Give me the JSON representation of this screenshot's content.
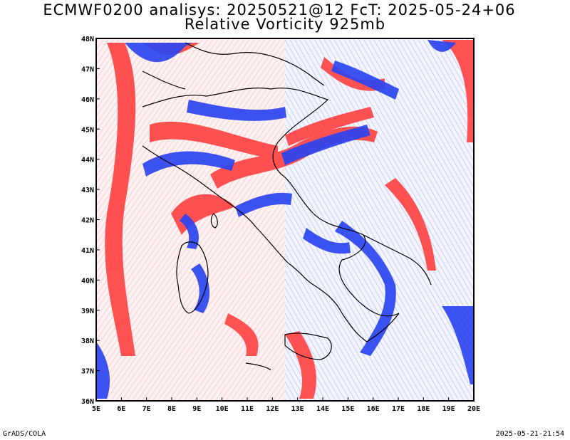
{
  "title_line1": "ECMWF0200 analisys: 20250521@12 FcT: 2025-05-24+06",
  "title_line2": "Relative Vorticity 925mb",
  "footer_left": "GrADS/COLA",
  "footer_right": "2025-05-21-21:54",
  "map": {
    "lon_range": [
      5,
      20
    ],
    "lat_range": [
      36,
      48
    ],
    "lon_labels": [
      "5E",
      "6E",
      "7E",
      "8E",
      "9E",
      "10E",
      "11E",
      "12E",
      "13E",
      "14E",
      "15E",
      "16E",
      "17E",
      "18E",
      "19E",
      "20E"
    ],
    "lat_labels": [
      "36N",
      "37N",
      "38N",
      "39N",
      "40N",
      "41N",
      "42N",
      "43N",
      "44N",
      "45N",
      "46N",
      "47N",
      "48N"
    ],
    "colors": {
      "positive": "#ff3b3b",
      "negative": "#2b45f0",
      "coast": "#000000",
      "background": "#ffffff"
    }
  }
}
